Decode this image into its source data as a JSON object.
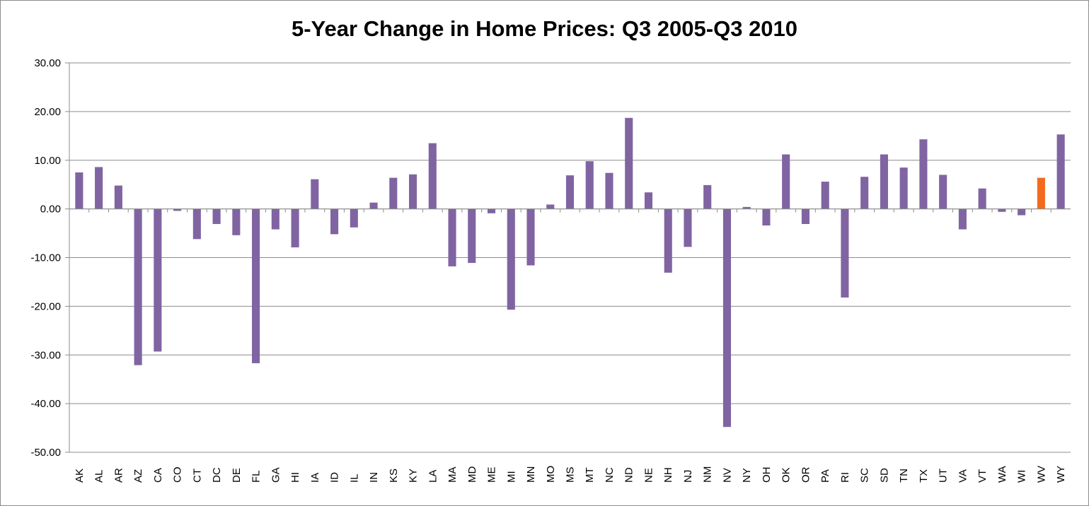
{
  "chart_data": {
    "type": "bar",
    "title": "5-Year Change in Home Prices: Q3 2005-Q3 2010",
    "xlabel": "",
    "ylabel": "",
    "ylim": [
      -50,
      30
    ],
    "yticks": [
      "30.00",
      "20.00",
      "10.00",
      "0.00",
      "-10.00",
      "-20.00",
      "-30.00",
      "-40.00",
      "-50.00"
    ],
    "ytick_values": [
      30,
      20,
      10,
      0,
      -10,
      -20,
      -30,
      -40,
      -50
    ],
    "grid": true,
    "legend": "none",
    "bar_color": "#8064a2",
    "highlight_color": "#f26b1d",
    "highlight_category": "WV",
    "categories": [
      "AK",
      "AL",
      "AR",
      "AZ",
      "CA",
      "CO",
      "CT",
      "DC",
      "DE",
      "FL",
      "GA",
      "HI",
      "IA",
      "ID",
      "IL",
      "IN",
      "KS",
      "KY",
      "LA",
      "MA",
      "MD",
      "ME",
      "MI",
      "MN",
      "MO",
      "MS",
      "MT",
      "NC",
      "ND",
      "NE",
      "NH",
      "NJ",
      "NM",
      "NV",
      "NY",
      "OH",
      "OK",
      "OR",
      "PA",
      "RI",
      "SC",
      "SD",
      "TN",
      "TX",
      "UT",
      "VA",
      "VT",
      "WA",
      "WI",
      "WV",
      "WY"
    ],
    "values": [
      7.5,
      8.6,
      4.8,
      -32.1,
      -29.3,
      -0.4,
      -6.2,
      -3.1,
      -5.4,
      -31.7,
      -4.2,
      -7.9,
      6.1,
      -5.2,
      -3.8,
      1.3,
      6.4,
      7.1,
      13.5,
      -11.8,
      -11.1,
      -0.9,
      -20.7,
      -11.6,
      0.9,
      6.9,
      9.8,
      7.4,
      18.7,
      3.4,
      -13.1,
      -7.8,
      4.9,
      -44.8,
      0.4,
      -3.4,
      11.2,
      -3.1,
      5.6,
      -18.2,
      6.6,
      11.2,
      8.5,
      14.3,
      7.0,
      -4.2,
      4.2,
      -0.6,
      -1.3,
      6.4,
      15.3
    ]
  }
}
